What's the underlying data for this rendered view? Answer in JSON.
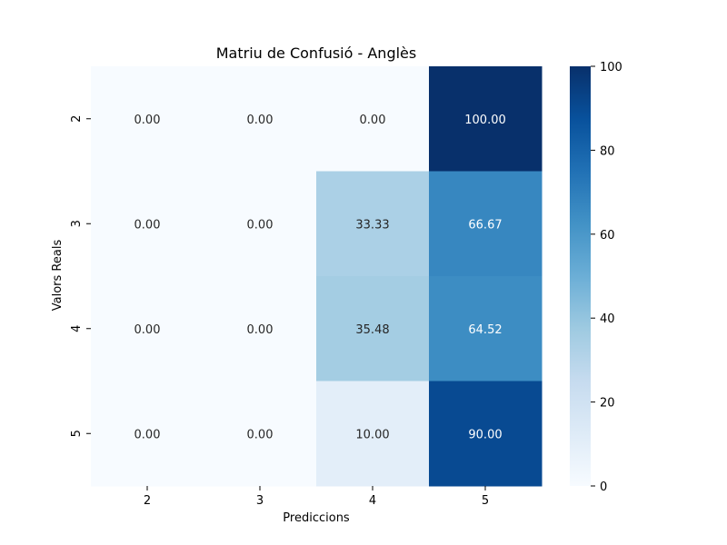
{
  "chart_data": {
    "type": "heatmap",
    "title": "Matriu de Confusió - Anglès",
    "xlabel": "Prediccions",
    "ylabel": "Valors Reals",
    "x_categories": [
      "2",
      "3",
      "4",
      "5"
    ],
    "y_categories": [
      "2",
      "3",
      "4",
      "5"
    ],
    "values": [
      [
        0.0,
        0.0,
        0.0,
        100.0
      ],
      [
        0.0,
        0.0,
        33.33,
        66.67
      ],
      [
        0.0,
        0.0,
        35.48,
        64.52
      ],
      [
        0.0,
        0.0,
        10.0,
        90.0
      ]
    ],
    "value_format": "0.00",
    "colormap": "Blues",
    "vmin": 0,
    "vmax": 100,
    "colorbar_ticks": [
      0,
      20,
      40,
      60,
      80,
      100
    ],
    "colorbar_ticklabels": [
      "0",
      "20",
      "40",
      "60",
      "80",
      "100"
    ]
  }
}
